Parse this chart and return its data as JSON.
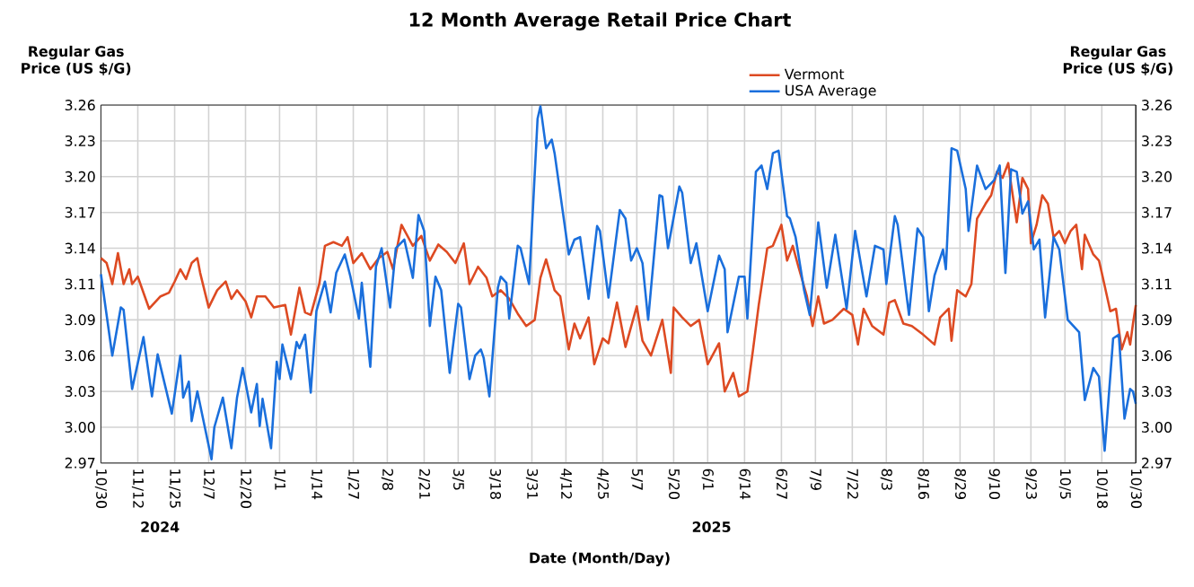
{
  "chart_data": {
    "type": "line",
    "title": "12 Month Average Retail Price Chart",
    "xlabel": "Date (Month/Day)",
    "ylabel": "Regular Gas Price (US $/G)",
    "y2label": "Regular Gas Price (US $/G)",
    "xlim": [
      "2024-10-30",
      "2025-10-30"
    ],
    "xticks": [
      {
        "value": "2024-10-30",
        "label": "10/30"
      },
      {
        "value": "2024-11-12",
        "label": "11/12"
      },
      {
        "value": "2024-11-25",
        "label": "11/25"
      },
      {
        "value": "2024-12-07",
        "label": "12/7"
      },
      {
        "value": "2024-12-20",
        "label": "12/20"
      },
      {
        "value": "2025-01-01",
        "label": "1/1"
      },
      {
        "value": "2025-01-14",
        "label": "1/14"
      },
      {
        "value": "2025-01-27",
        "label": "1/27"
      },
      {
        "value": "2025-02-08",
        "label": "2/8"
      },
      {
        "value": "2025-02-21",
        "label": "2/21"
      },
      {
        "value": "2025-03-05",
        "label": "3/5"
      },
      {
        "value": "2025-03-18",
        "label": "3/18"
      },
      {
        "value": "2025-03-31",
        "label": "3/31"
      },
      {
        "value": "2025-04-12",
        "label": "4/12"
      },
      {
        "value": "2025-04-25",
        "label": "4/25"
      },
      {
        "value": "2025-05-07",
        "label": "5/7"
      },
      {
        "value": "2025-05-20",
        "label": "5/20"
      },
      {
        "value": "2025-06-01",
        "label": "6/1"
      },
      {
        "value": "2025-06-14",
        "label": "6/14"
      },
      {
        "value": "2025-06-27",
        "label": "6/27"
      },
      {
        "value": "2025-07-09",
        "label": "7/9"
      },
      {
        "value": "2025-07-22",
        "label": "7/22"
      },
      {
        "value": "2025-08-03",
        "label": "8/3"
      },
      {
        "value": "2025-08-16",
        "label": "8/16"
      },
      {
        "value": "2025-08-29",
        "label": "8/29"
      },
      {
        "value": "2025-09-10",
        "label": "9/10"
      },
      {
        "value": "2025-09-23",
        "label": "9/23"
      },
      {
        "value": "2025-10-05",
        "label": "10/5"
      },
      {
        "value": "2025-10-18",
        "label": "10/18"
      },
      {
        "value": "2025-10-30",
        "label": "10/30"
      }
    ],
    "ylim": [
      2.97,
      3.26
    ],
    "yticks": [
      2.97,
      {
        "value": 2.999,
        "label": "3.00"
      },
      {
        "value": 3.028,
        "label": "3.03"
      },
      {
        "value": 3.057,
        "label": "3.06"
      },
      {
        "value": 3.086,
        "label": "3.09"
      },
      {
        "value": 3.115,
        "label": "3.11"
      },
      {
        "value": 3.144,
        "label": "3.14"
      },
      {
        "value": 3.173,
        "label": "3.17"
      },
      {
        "value": 3.202,
        "label": "3.20"
      },
      {
        "value": 3.231,
        "label": "3.23"
      },
      3.26
    ],
    "y2lim": [
      2.97,
      3.26
    ],
    "y2ticks": [
      2.97,
      {
        "value": 2.999,
        "label": "3.00"
      },
      {
        "value": 3.028,
        "label": "3.03"
      },
      {
        "value": 3.057,
        "label": "3.06"
      },
      {
        "value": 3.086,
        "label": "3.09"
      },
      {
        "value": 3.115,
        "label": "3.11"
      },
      {
        "value": 3.144,
        "label": "3.14"
      },
      {
        "value": 3.173,
        "label": "3.17"
      },
      {
        "value": 3.202,
        "label": "3.20"
      },
      {
        "value": 3.231,
        "label": "3.23"
      },
      3.26
    ],
    "grid": true,
    "legend": "top right",
    "annotations": [
      "2024",
      "2025"
    ],
    "series": [
      {
        "name": "Vermont",
        "color": "#dd4a22",
        "x": [
          "2024-10-30",
          "2024-11-01",
          "2024-11-02",
          "2024-11-03",
          "2024-11-05",
          "2024-11-07",
          "2024-11-09",
          "2024-11-10",
          "2024-11-12",
          "2024-11-14",
          "2024-11-16",
          "2024-11-20",
          "2024-11-23",
          "2024-11-25",
          "2024-11-27",
          "2024-11-29",
          "2024-12-01",
          "2024-12-03",
          "2024-12-04",
          "2024-12-07",
          "2024-12-10",
          "2024-12-13",
          "2024-12-15",
          "2024-12-17",
          "2024-12-20",
          "2024-12-22",
          "2024-12-24",
          "2024-12-27",
          "2024-12-30",
          "2025-01-03",
          "2025-01-05",
          "2025-01-08",
          "2025-01-10",
          "2025-01-12",
          "2025-01-15",
          "2025-01-17",
          "2025-01-20",
          "2025-01-23",
          "2025-01-25",
          "2025-01-27",
          "2025-01-30",
          "2025-02-02",
          "2025-02-05",
          "2025-02-08",
          "2025-02-10",
          "2025-02-13",
          "2025-02-17",
          "2025-02-20",
          "2025-02-23",
          "2025-02-26",
          "2025-03-01",
          "2025-03-04",
          "2025-03-07",
          "2025-03-09",
          "2025-03-12",
          "2025-03-15",
          "2025-03-17",
          "2025-03-20",
          "2025-03-23",
          "2025-03-26",
          "2025-03-29",
          "2025-04-01",
          "2025-04-03",
          "2025-04-05",
          "2025-04-08",
          "2025-04-10",
          "2025-04-13",
          "2025-04-15",
          "2025-04-17",
          "2025-04-20",
          "2025-04-22",
          "2025-04-25",
          "2025-04-27",
          "2025-04-30",
          "2025-05-03",
          "2025-05-07",
          "2025-05-09",
          "2025-05-12",
          "2025-05-16",
          "2025-05-19",
          "2025-05-20",
          "2025-05-23",
          "2025-05-26",
          "2025-05-29",
          "2025-06-01",
          "2025-06-05",
          "2025-06-07",
          "2025-06-10",
          "2025-06-12",
          "2025-06-15",
          "2025-06-17",
          "2025-06-19",
          "2025-06-22",
          "2025-06-24",
          "2025-06-27",
          "2025-06-29",
          "2025-07-01",
          "2025-07-03",
          "2025-07-06",
          "2025-07-08",
          "2025-07-10",
          "2025-07-12",
          "2025-07-15",
          "2025-07-19",
          "2025-07-22",
          "2025-07-24",
          "2025-07-26",
          "2025-07-29",
          "2025-08-02",
          "2025-08-04",
          "2025-08-06",
          "2025-08-09",
          "2025-08-12",
          "2025-08-16",
          "2025-08-20",
          "2025-08-22",
          "2025-08-25",
          "2025-08-26",
          "2025-08-28",
          "2025-08-31",
          "2025-09-02",
          "2025-09-04",
          "2025-09-07",
          "2025-09-09",
          "2025-09-11",
          "2025-09-13",
          "2025-09-15",
          "2025-09-16",
          "2025-09-18",
          "2025-09-20",
          "2025-09-22",
          "2025-09-23",
          "2025-09-25",
          "2025-09-27",
          "2025-09-29",
          "2025-10-01",
          "2025-10-03",
          "2025-10-05",
          "2025-10-07",
          "2025-10-09",
          "2025-10-11",
          "2025-10-12",
          "2025-10-15",
          "2025-10-17",
          "2025-10-18",
          "2025-10-21",
          "2025-10-23",
          "2025-10-25",
          "2025-10-27",
          "2025-10-28",
          "2025-10-29",
          "2025-10-30"
        ],
        "values": [
          3.136,
          3.132,
          3.124,
          3.115,
          3.14,
          3.115,
          3.127,
          3.115,
          3.121,
          3.108,
          3.095,
          3.105,
          3.108,
          3.117,
          3.127,
          3.119,
          3.132,
          3.136,
          3.124,
          3.096,
          3.11,
          3.117,
          3.103,
          3.11,
          3.101,
          3.088,
          3.105,
          3.105,
          3.096,
          3.098,
          3.074,
          3.112,
          3.092,
          3.09,
          3.115,
          3.146,
          3.149,
          3.146,
          3.153,
          3.132,
          3.14,
          3.127,
          3.136,
          3.141,
          3.127,
          3.163,
          3.146,
          3.154,
          3.134,
          3.147,
          3.141,
          3.132,
          3.148,
          3.115,
          3.129,
          3.12,
          3.105,
          3.11,
          3.103,
          3.091,
          3.081,
          3.086,
          3.12,
          3.135,
          3.11,
          3.105,
          3.062,
          3.083,
          3.071,
          3.088,
          3.05,
          3.071,
          3.067,
          3.1,
          3.064,
          3.097,
          3.069,
          3.057,
          3.086,
          3.043,
          3.096,
          3.088,
          3.081,
          3.086,
          3.05,
          3.067,
          3.028,
          3.043,
          3.024,
          3.028,
          3.062,
          3.098,
          3.144,
          3.146,
          3.163,
          3.134,
          3.146,
          3.129,
          3.105,
          3.081,
          3.105,
          3.083,
          3.086,
          3.095,
          3.09,
          3.066,
          3.095,
          3.081,
          3.074,
          3.1,
          3.102,
          3.083,
          3.081,
          3.074,
          3.066,
          3.088,
          3.095,
          3.069,
          3.11,
          3.105,
          3.115,
          3.168,
          3.18,
          3.187,
          3.206,
          3.201,
          3.213,
          3.196,
          3.165,
          3.201,
          3.192,
          3.148,
          3.163,
          3.187,
          3.18,
          3.153,
          3.158,
          3.148,
          3.158,
          3.163,
          3.127,
          3.155,
          3.139,
          3.134,
          3.124,
          3.093,
          3.095,
          3.062,
          3.076,
          3.066,
          3.083,
          3.098
        ]
      },
      {
        "name": "USA Average",
        "color": "#1a6fdc",
        "x": [
          "2024-10-30",
          "2024-11-03",
          "2024-11-06",
          "2024-11-07",
          "2024-11-10",
          "2024-11-14",
          "2024-11-17",
          "2024-11-19",
          "2024-11-24",
          "2024-11-27",
          "2024-11-28",
          "2024-11-30",
          "2024-12-01",
          "2024-12-03",
          "2024-12-08",
          "2024-12-09",
          "2024-12-12",
          "2024-12-15",
          "2024-12-17",
          "2024-12-19",
          "2024-12-22",
          "2024-12-24",
          "2024-12-25",
          "2024-12-26",
          "2024-12-29",
          "2024-12-31",
          "2025-01-01",
          "2025-01-02",
          "2025-01-05",
          "2025-01-07",
          "2025-01-08",
          "2025-01-10",
          "2025-01-12",
          "2025-01-14",
          "2025-01-17",
          "2025-01-19",
          "2025-01-21",
          "2025-01-24",
          "2025-01-26",
          "2025-01-29",
          "2025-01-30",
          "2025-02-02",
          "2025-02-04",
          "2025-02-06",
          "2025-02-09",
          "2025-02-11",
          "2025-02-14",
          "2025-02-17",
          "2025-02-19",
          "2025-02-21",
          "2025-02-23",
          "2025-02-25",
          "2025-02-27",
          "2025-03-02",
          "2025-03-05",
          "2025-03-06",
          "2025-03-09",
          "2025-03-11",
          "2025-03-13",
          "2025-03-14",
          "2025-03-16",
          "2025-03-19",
          "2025-03-20",
          "2025-03-22",
          "2025-03-23",
          "2025-03-26",
          "2025-03-27",
          "2025-03-30",
          "2025-04-02",
          "2025-04-03",
          "2025-04-05",
          "2025-04-07",
          "2025-04-08",
          "2025-04-13",
          "2025-04-15",
          "2025-04-17",
          "2025-04-20",
          "2025-04-23",
          "2025-04-24",
          "2025-04-27",
          "2025-05-01",
          "2025-05-03",
          "2025-05-05",
          "2025-05-07",
          "2025-05-09",
          "2025-05-11",
          "2025-05-15",
          "2025-05-16",
          "2025-05-18",
          "2025-05-22",
          "2025-05-23",
          "2025-05-26",
          "2025-05-28",
          "2025-06-01",
          "2025-06-05",
          "2025-06-07",
          "2025-06-08",
          "2025-06-12",
          "2025-06-14",
          "2025-06-15",
          "2025-06-18",
          "2025-06-20",
          "2025-06-22",
          "2025-06-24",
          "2025-06-26",
          "2025-06-29",
          "2025-06-30",
          "2025-07-02",
          "2025-07-05",
          "2025-07-07",
          "2025-07-10",
          "2025-07-13",
          "2025-07-16",
          "2025-07-20",
          "2025-07-23",
          "2025-07-27",
          "2025-07-30",
          "2025-08-02",
          "2025-08-03",
          "2025-08-06",
          "2025-08-07",
          "2025-08-11",
          "2025-08-14",
          "2025-08-16",
          "2025-08-18",
          "2025-08-20",
          "2025-08-23",
          "2025-08-24",
          "2025-08-26",
          "2025-08-28",
          "2025-08-31",
          "2025-09-01",
          "2025-09-04",
          "2025-09-07",
          "2025-09-10",
          "2025-09-12",
          "2025-09-14",
          "2025-09-16",
          "2025-09-18",
          "2025-09-20",
          "2025-09-22",
          "2025-09-24",
          "2025-09-26",
          "2025-09-28",
          "2025-10-01",
          "2025-10-03",
          "2025-10-06",
          "2025-10-10",
          "2025-10-12",
          "2025-10-15",
          "2025-10-17",
          "2025-10-19",
          "2025-10-22",
          "2025-10-24",
          "2025-10-26",
          "2025-10-28",
          "2025-10-29",
          "2025-10-30"
        ],
        "values": [
          3.123,
          3.057,
          3.096,
          3.094,
          3.03,
          3.072,
          3.024,
          3.058,
          3.01,
          3.057,
          3.023,
          3.036,
          3.004,
          3.028,
          2.973,
          2.999,
          3.023,
          2.982,
          3.023,
          3.047,
          3.011,
          3.034,
          3.0,
          3.022,
          2.982,
          3.052,
          3.038,
          3.066,
          3.038,
          3.068,
          3.063,
          3.074,
          3.027,
          3.093,
          3.117,
          3.092,
          3.124,
          3.139,
          3.121,
          3.087,
          3.116,
          3.048,
          3.129,
          3.144,
          3.096,
          3.144,
          3.151,
          3.12,
          3.171,
          3.158,
          3.081,
          3.121,
          3.11,
          3.043,
          3.099,
          3.096,
          3.038,
          3.057,
          3.062,
          3.055,
          3.024,
          3.112,
          3.121,
          3.116,
          3.087,
          3.146,
          3.144,
          3.115,
          3.249,
          3.259,
          3.225,
          3.232,
          3.221,
          3.139,
          3.151,
          3.153,
          3.103,
          3.162,
          3.158,
          3.104,
          3.175,
          3.168,
          3.134,
          3.144,
          3.132,
          3.086,
          3.187,
          3.186,
          3.144,
          3.194,
          3.189,
          3.132,
          3.148,
          3.093,
          3.138,
          3.127,
          3.076,
          3.121,
          3.121,
          3.087,
          3.206,
          3.211,
          3.192,
          3.221,
          3.223,
          3.17,
          3.168,
          3.153,
          3.11,
          3.09,
          3.165,
          3.112,
          3.155,
          3.095,
          3.158,
          3.105,
          3.146,
          3.143,
          3.115,
          3.17,
          3.163,
          3.09,
          3.16,
          3.153,
          3.093,
          3.122,
          3.143,
          3.127,
          3.225,
          3.223,
          3.192,
          3.158,
          3.211,
          3.192,
          3.199,
          3.211,
          3.124,
          3.208,
          3.206,
          3.172,
          3.182,
          3.143,
          3.151,
          3.088,
          3.153,
          3.143,
          3.086,
          3.076,
          3.021,
          3.047,
          3.04,
          2.98,
          3.071,
          3.074,
          3.006,
          3.03,
          3.028,
          3.018
        ]
      }
    ]
  }
}
